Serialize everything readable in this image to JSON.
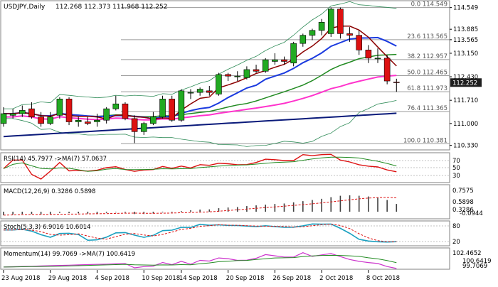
{
  "chart_data": {
    "type": "candlestick",
    "title": "USDJPY,Daily",
    "ohlc_header": "112.268 112.373 111.968 112.252",
    "last_price": 112.252,
    "price_axis": {
      "ylim": [
        110.3,
        114.65
      ],
      "ticks": [
        "114.549",
        "113.885",
        "113.565",
        "113.150",
        "112.430",
        "112.252",
        "111.710",
        "111.000",
        "110.330"
      ]
    },
    "x_tick_labels": [
      "23 Aug 2018",
      "29 Aug 2018",
      "4 Sep 2018",
      "10 Sep 2018",
      "14 Sep 2018",
      "20 Sep 2018",
      "26 Sep 2018",
      "2 Oct 2018",
      "8 Oct 2018"
    ],
    "candles": [
      {
        "o": 111.0,
        "h": 111.5,
        "l": 110.9,
        "c": 111.3
      },
      {
        "o": 111.25,
        "h": 111.45,
        "l": 111.15,
        "c": 111.3
      },
      {
        "o": 111.3,
        "h": 111.55,
        "l": 111.2,
        "c": 111.4
      },
      {
        "o": 111.45,
        "h": 111.65,
        "l": 111.15,
        "c": 111.2
      },
      {
        "o": 111.2,
        "h": 111.35,
        "l": 110.9,
        "c": 111.0
      },
      {
        "o": 111.0,
        "h": 111.35,
        "l": 110.95,
        "c": 111.2
      },
      {
        "o": 111.25,
        "h": 111.8,
        "l": 111.15,
        "c": 111.75
      },
      {
        "o": 111.75,
        "h": 111.8,
        "l": 110.95,
        "c": 111.05
      },
      {
        "o": 111.05,
        "h": 111.2,
        "l": 110.9,
        "c": 111.1
      },
      {
        "o": 111.05,
        "h": 111.2,
        "l": 110.95,
        "c": 111.0
      },
      {
        "o": 111.05,
        "h": 111.3,
        "l": 110.9,
        "c": 111.1
      },
      {
        "o": 111.1,
        "h": 111.5,
        "l": 111.0,
        "c": 111.45
      },
      {
        "o": 111.45,
        "h": 111.85,
        "l": 111.4,
        "c": 111.6
      },
      {
        "o": 111.6,
        "h": 111.65,
        "l": 111.1,
        "c": 111.15
      },
      {
        "o": 111.15,
        "h": 111.25,
        "l": 110.4,
        "c": 110.75
      },
      {
        "o": 110.75,
        "h": 111.05,
        "l": 110.65,
        "c": 111.0
      },
      {
        "o": 111.0,
        "h": 111.35,
        "l": 110.95,
        "c": 111.2
      },
      {
        "o": 111.2,
        "h": 111.85,
        "l": 111.15,
        "c": 111.75
      },
      {
        "o": 111.75,
        "h": 111.85,
        "l": 111.05,
        "c": 111.1
      },
      {
        "o": 111.1,
        "h": 112.05,
        "l": 111.05,
        "c": 112.0
      },
      {
        "o": 111.95,
        "h": 112.05,
        "l": 111.75,
        "c": 111.95
      },
      {
        "o": 111.95,
        "h": 112.1,
        "l": 111.85,
        "c": 112.05
      },
      {
        "o": 112.0,
        "h": 112.15,
        "l": 111.85,
        "c": 111.95
      },
      {
        "o": 111.9,
        "h": 112.55,
        "l": 111.85,
        "c": 112.5
      },
      {
        "o": 112.5,
        "h": 112.55,
        "l": 112.3,
        "c": 112.45
      },
      {
        "o": 112.45,
        "h": 112.6,
        "l": 112.3,
        "c": 112.45
      },
      {
        "o": 112.4,
        "h": 112.75,
        "l": 112.35,
        "c": 112.65
      },
      {
        "o": 112.65,
        "h": 112.8,
        "l": 112.55,
        "c": 112.6
      },
      {
        "o": 112.6,
        "h": 113.0,
        "l": 112.55,
        "c": 112.95
      },
      {
        "o": 112.9,
        "h": 113.15,
        "l": 112.8,
        "c": 112.95
      },
      {
        "o": 112.95,
        "h": 113.05,
        "l": 112.8,
        "c": 112.9
      },
      {
        "o": 112.85,
        "h": 113.5,
        "l": 112.75,
        "c": 113.45
      },
      {
        "o": 113.45,
        "h": 113.75,
        "l": 113.35,
        "c": 113.7
      },
      {
        "o": 113.7,
        "h": 113.9,
        "l": 113.55,
        "c": 113.85
      },
      {
        "o": 113.85,
        "h": 114.2,
        "l": 113.7,
        "c": 114.1
      },
      {
        "o": 113.75,
        "h": 114.55,
        "l": 113.65,
        "c": 114.5
      },
      {
        "o": 114.5,
        "h": 114.55,
        "l": 113.6,
        "c": 113.75
      },
      {
        "o": 113.75,
        "h": 113.95,
        "l": 113.5,
        "c": 113.7
      },
      {
        "o": 113.7,
        "h": 113.85,
        "l": 113.1,
        "c": 113.25
      },
      {
        "o": 113.25,
        "h": 113.4,
        "l": 112.85,
        "c": 113.0
      },
      {
        "o": 113.0,
        "h": 113.3,
        "l": 112.85,
        "c": 113.0
      },
      {
        "o": 113.0,
        "h": 113.1,
        "l": 112.2,
        "c": 112.3
      },
      {
        "o": 112.27,
        "h": 112.37,
        "l": 111.97,
        "c": 112.25
      }
    ],
    "fibonacci_levels": [
      {
        "label": "0.0 114.549",
        "value": 114.549
      },
      {
        "label": "23.6 113.565",
        "value": 113.565
      },
      {
        "label": "38.2 112.957",
        "value": 112.957
      },
      {
        "label": "50.0 112.465",
        "value": 112.465
      },
      {
        "label": "61.8 111.973",
        "value": 111.973
      },
      {
        "label": "76.4 111.365",
        "value": 111.365
      },
      {
        "label": "100.0 110.381",
        "value": 110.381
      }
    ],
    "rsi": {
      "label": "RSI(14) 45.7977 ->MA(7) 57.0637",
      "ticks": [
        "70",
        "50",
        "30"
      ]
    },
    "macd": {
      "label": "MACD(12,26,9) 0.3286 0.5898",
      "ticks": [
        "0.7575",
        "0.5898",
        "0.3286",
        "-0.0944"
      ],
      "hist": [
        -0.15,
        -0.12,
        -0.1,
        -0.1,
        -0.12,
        -0.12,
        -0.05,
        -0.06,
        -0.07,
        -0.08,
        -0.08,
        -0.05,
        -0.02,
        -0.04,
        -0.1,
        -0.1,
        -0.08,
        -0.03,
        -0.03,
        0.03,
        0.06,
        0.09,
        0.1,
        0.15,
        0.18,
        0.2,
        0.24,
        0.27,
        0.3,
        0.33,
        0.35,
        0.4,
        0.45,
        0.5,
        0.55,
        0.62,
        0.68,
        0.7,
        0.68,
        0.65,
        0.6,
        0.5,
        0.33
      ]
    },
    "stoch": {
      "label": "Stoch(5,3,3) 6.9016 10.6014",
      "ticks": [
        "80",
        "20"
      ]
    },
    "momentum": {
      "label": "Momentum(14) 99.7069 ->MA(7) 100.6419",
      "ticks": [
        "102.4652",
        "100.6419",
        "99.7069"
      ]
    },
    "colors": {
      "bull": "#22aa22",
      "bear": "#dd1111",
      "sma_dark": "#0a1a7a",
      "sma_blue": "#1a3adf",
      "sma_red": "#8b0000",
      "sma_green": "#228b22",
      "sma_pink": "#ff33cc",
      "bb": "#2e8b57"
    }
  }
}
